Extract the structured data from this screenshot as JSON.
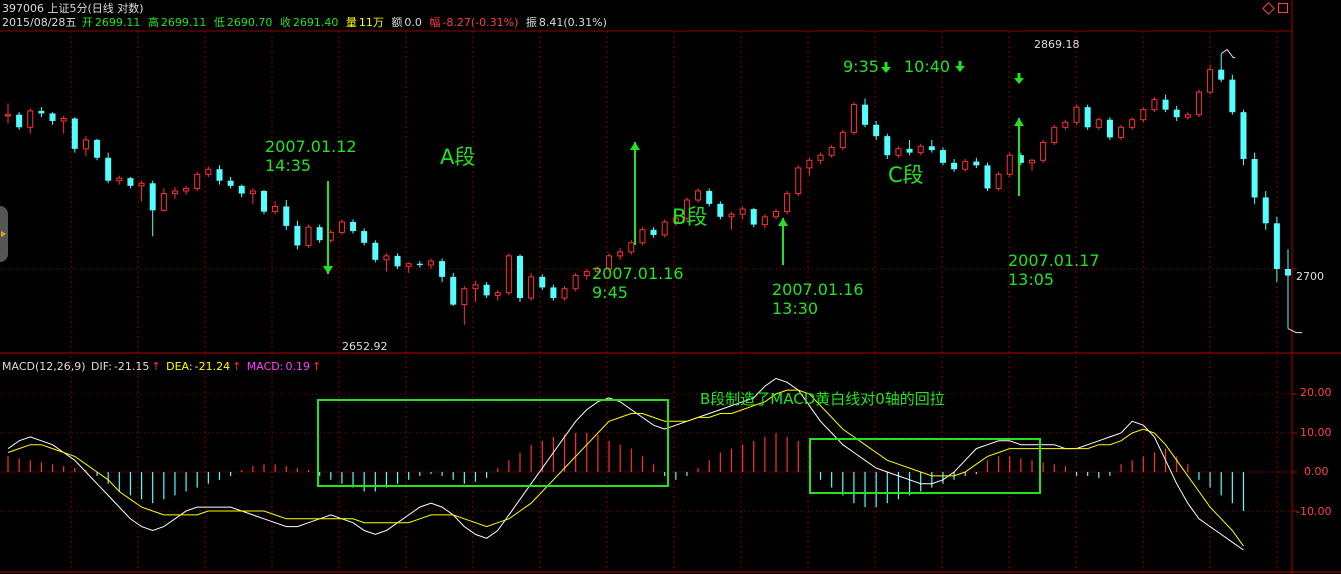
{
  "header": {
    "code_title": "397006 上证5分(日线 对数)",
    "date": "2015/08/28五",
    "open_label": "开",
    "open": "2699.11",
    "high_label": "高",
    "high": "2699.11",
    "low_label": "低",
    "low": "2690.70",
    "close_label": "收",
    "close": "2691.40",
    "vol_label": "量",
    "vol": "11万",
    "amount_label": "额",
    "amount": "0.0",
    "change_label": "幅",
    "change": "-8.27(-0.31%)",
    "amp_label": "振",
    "amp": "8.41(0.31%)"
  },
  "price_axis": {
    "label_2700": "2700"
  },
  "price_extremes": {
    "high_label": "2869.18",
    "low_label": "2652.92"
  },
  "annotations": {
    "a1": {
      "date": "2007.01.12",
      "time": "14:35"
    },
    "a2": {
      "date": "2007.01.16",
      "time": "9:45"
    },
    "a3": {
      "date": "2007.01.16",
      "time": "13:30"
    },
    "a4": {
      "date": "2007.01.17",
      "time": "13:05"
    },
    "t1": "9:35",
    "t2": "10:40",
    "seg_a": "A段",
    "seg_b": "B段",
    "seg_c": "C段",
    "macd_note": "B段制造了MACD黄白线对0轴的回拉"
  },
  "macd_header": {
    "name": "MACD(12,26,9)",
    "dif_label": "DIF:",
    "dif": "-21.15",
    "dea_label": "DEA:",
    "dea": "-21.24",
    "macd_label": "MACD:",
    "macd": "0.19",
    "arrow": "↑"
  },
  "macd_axis": [
    "20.00",
    "10.00",
    "0.00",
    "-10.00"
  ],
  "colors": {
    "up": "#ff3030",
    "down": "#54ffff",
    "dif": "#ffffff",
    "dea": "#ffff00",
    "macd_label": "#ff40ff",
    "annotation": "#22e322",
    "grid": "#8b0000"
  },
  "chart_data": [
    {
      "type": "candlestick",
      "ylabel": "",
      "ylim": [
        2645,
        2880
      ],
      "x_count": 112,
      "y_ticks": [
        2700
      ],
      "ohlc": [
        [
          2819,
          2829,
          2813,
          2820
        ],
        [
          2820,
          2822,
          2808,
          2810
        ],
        [
          2810,
          2825,
          2805,
          2823
        ],
        [
          2823,
          2826,
          2818,
          2821
        ],
        [
          2821,
          2822,
          2812,
          2815
        ],
        [
          2815,
          2819,
          2805,
          2817
        ],
        [
          2817,
          2818,
          2790,
          2793
        ],
        [
          2793,
          2803,
          2787,
          2800
        ],
        [
          2800,
          2801,
          2784,
          2786
        ],
        [
          2786,
          2790,
          2766,
          2768
        ],
        [
          2768,
          2772,
          2765,
          2770
        ],
        [
          2770,
          2771,
          2762,
          2764
        ],
        [
          2764,
          2768,
          2752,
          2766
        ],
        [
          2766,
          2768,
          2725,
          2745
        ],
        [
          2745,
          2762,
          2744,
          2758
        ],
        [
          2758,
          2763,
          2754,
          2760
        ],
        [
          2760,
          2764,
          2757,
          2762
        ],
        [
          2762,
          2775,
          2760,
          2773
        ],
        [
          2773,
          2779,
          2771,
          2777
        ],
        [
          2777,
          2780,
          2765,
          2768
        ],
        [
          2768,
          2771,
          2762,
          2764
        ],
        [
          2764,
          2765,
          2755,
          2758
        ],
        [
          2758,
          2762,
          2750,
          2760
        ],
        [
          2760,
          2761,
          2742,
          2744
        ],
        [
          2744,
          2752,
          2742,
          2748
        ],
        [
          2748,
          2753,
          2730,
          2733
        ],
        [
          2733,
          2737,
          2715,
          2718
        ],
        [
          2718,
          2734,
          2716,
          2732
        ],
        [
          2732,
          2734,
          2720,
          2722
        ],
        [
          2722,
          2730,
          2720,
          2728
        ],
        [
          2728,
          2738,
          2726,
          2736
        ],
        [
          2736,
          2738,
          2727,
          2729
        ],
        [
          2729,
          2731,
          2718,
          2720
        ],
        [
          2720,
          2722,
          2705,
          2707
        ],
        [
          2707,
          2712,
          2698,
          2710
        ],
        [
          2710,
          2712,
          2700,
          2702
        ],
        [
          2702,
          2705,
          2697,
          2704
        ],
        [
          2704,
          2706,
          2701,
          2703
        ],
        [
          2703,
          2708,
          2700,
          2706
        ],
        [
          2706,
          2708,
          2690,
          2694
        ],
        [
          2694,
          2697,
          2672,
          2673
        ],
        [
          2673,
          2687,
          2658,
          2685
        ],
        [
          2685,
          2691,
          2675,
          2688
        ],
        [
          2688,
          2690,
          2678,
          2680
        ],
        [
          2680,
          2684,
          2676,
          2682
        ],
        [
          2682,
          2712,
          2680,
          2710
        ],
        [
          2710,
          2711,
          2675,
          2678
        ],
        [
          2678,
          2697,
          2676,
          2694
        ],
        [
          2694,
          2696,
          2684,
          2686
        ],
        [
          2686,
          2688,
          2676,
          2678
        ],
        [
          2678,
          2687,
          2676,
          2685
        ],
        [
          2685,
          2697,
          2683,
          2695
        ],
        [
          2695,
          2700,
          2692,
          2698
        ],
        [
          2698,
          2702,
          2695,
          2700
        ],
        [
          2700,
          2712,
          2698,
          2710
        ],
        [
          2710,
          2716,
          2707,
          2713
        ],
        [
          2713,
          2722,
          2711,
          2720
        ],
        [
          2720,
          2732,
          2718,
          2730
        ],
        [
          2730,
          2732,
          2724,
          2726
        ],
        [
          2726,
          2738,
          2724,
          2736
        ],
        [
          2736,
          2741,
          2733,
          2739
        ],
        [
          2739,
          2755,
          2737,
          2753
        ],
        [
          2753,
          2762,
          2751,
          2760
        ],
        [
          2760,
          2762,
          2748,
          2750
        ],
        [
          2750,
          2752,
          2738,
          2740
        ],
        [
          2740,
          2744,
          2730,
          2742
        ],
        [
          2742,
          2748,
          2738,
          2746
        ],
        [
          2746,
          2747,
          2732,
          2734
        ],
        [
          2734,
          2742,
          2731,
          2740
        ],
        [
          2740,
          2746,
          2738,
          2744
        ],
        [
          2744,
          2760,
          2742,
          2758
        ],
        [
          2758,
          2780,
          2756,
          2778
        ],
        [
          2778,
          2786,
          2772,
          2784
        ],
        [
          2784,
          2790,
          2781,
          2788
        ],
        [
          2788,
          2796,
          2786,
          2794
        ],
        [
          2794,
          2808,
          2792,
          2806
        ],
        [
          2806,
          2830,
          2804,
          2828
        ],
        [
          2828,
          2833,
          2810,
          2812
        ],
        [
          2812,
          2815,
          2800,
          2803
        ],
        [
          2803,
          2805,
          2785,
          2788
        ],
        [
          2788,
          2795,
          2786,
          2793
        ],
        [
          2793,
          2800,
          2788,
          2790
        ],
        [
          2790,
          2797,
          2788,
          2795
        ],
        [
          2795,
          2800,
          2790,
          2792
        ],
        [
          2792,
          2794,
          2780,
          2782
        ],
        [
          2782,
          2785,
          2775,
          2777
        ],
        [
          2777,
          2785,
          2775,
          2783
        ],
        [
          2783,
          2786,
          2778,
          2780
        ],
        [
          2780,
          2782,
          2760,
          2762
        ],
        [
          2762,
          2775,
          2760,
          2773
        ],
        [
          2773,
          2790,
          2771,
          2788
        ],
        [
          2788,
          2790,
          2780,
          2782
        ],
        [
          2782,
          2785,
          2776,
          2784
        ],
        [
          2784,
          2800,
          2782,
          2798
        ],
        [
          2798,
          2812,
          2796,
          2810
        ],
        [
          2810,
          2816,
          2808,
          2814
        ],
        [
          2814,
          2828,
          2812,
          2826
        ],
        [
          2826,
          2828,
          2808,
          2810
        ],
        [
          2810,
          2818,
          2808,
          2816
        ],
        [
          2816,
          2818,
          2800,
          2802
        ],
        [
          2802,
          2812,
          2800,
          2810
        ],
        [
          2810,
          2818,
          2808,
          2816
        ],
        [
          2816,
          2826,
          2814,
          2824
        ],
        [
          2824,
          2834,
          2822,
          2832
        ],
        [
          2832,
          2836,
          2822,
          2824
        ],
        [
          2824,
          2827,
          2815,
          2818
        ],
        [
          2818,
          2822,
          2816,
          2820
        ],
        [
          2820,
          2840,
          2818,
          2838
        ],
        [
          2838,
          2860,
          2836,
          2856
        ],
        [
          2856,
          2869,
          2846,
          2848
        ],
        [
          2848,
          2852,
          2820,
          2822
        ],
        [
          2822,
          2824,
          2780,
          2785
        ],
        [
          2785,
          2790,
          2750,
          2755
        ],
        [
          2755,
          2760,
          2730,
          2735
        ],
        [
          2735,
          2740,
          2690,
          2700
        ],
        [
          2700,
          2715,
          2655,
          2695
        ]
      ]
    },
    {
      "type": "bar+line",
      "ylabel": "",
      "ylim": [
        -26,
        26
      ],
      "y_ticks": [
        20,
        10,
        0,
        -10
      ],
      "x_count": 112,
      "macd_hist": [
        4,
        3.5,
        3,
        2.5,
        2,
        1.5,
        1,
        0.5,
        -1,
        -3,
        -5,
        -6,
        -7,
        -8,
        -7,
        -6,
        -5,
        -4,
        -3,
        -2,
        -1,
        0.5,
        1.5,
        2,
        2,
        1.5,
        1,
        0.5,
        -1,
        -2,
        -3,
        -4,
        -5,
        -5,
        -4,
        -3,
        -2,
        -1,
        -0.5,
        -1,
        -2,
        -3,
        -2.5,
        -1.5,
        1,
        3,
        5,
        7,
        8,
        9,
        9.5,
        10,
        10,
        9.5,
        8,
        7,
        6,
        4,
        2,
        -1,
        -2,
        -1,
        1,
        3,
        5,
        6,
        7,
        8,
        9,
        10,
        9,
        8,
        7,
        -2,
        -4,
        -6,
        -8,
        -9,
        -9,
        -8,
        -7,
        -6,
        -5,
        -4,
        -3,
        -2,
        -1,
        -0.5,
        3,
        4,
        4,
        3.5,
        3,
        2.5,
        2,
        1.5,
        -1,
        -1,
        -1.5,
        -1,
        2,
        3,
        4,
        5,
        6,
        4,
        2,
        -2,
        -4,
        -6,
        -8,
        -10
      ],
      "series": [
        {
          "name": "DIF",
          "values": [
            6,
            8,
            9,
            8,
            7,
            5,
            3,
            0,
            -3,
            -6,
            -9,
            -12,
            -14,
            -15,
            -14,
            -12,
            -10,
            -9,
            -9,
            -9,
            -9,
            -10,
            -11,
            -12,
            -13,
            -14,
            -14,
            -13,
            -12,
            -11,
            -12,
            -13,
            -15,
            -16,
            -15,
            -13,
            -11,
            -9,
            -8,
            -9,
            -11,
            -14,
            -16,
            -17,
            -15,
            -11,
            -7,
            -3,
            1,
            5,
            9,
            13,
            16,
            18,
            19,
            18,
            16,
            14,
            12,
            11,
            12,
            13,
            14,
            15,
            16,
            17,
            18,
            19,
            22,
            24,
            23,
            21,
            17,
            13,
            10,
            7,
            5,
            3,
            1,
            0,
            -1,
            -2,
            -3,
            -3,
            -2,
            0,
            3,
            6,
            7,
            8,
            8,
            7,
            7,
            7,
            7,
            6,
            6,
            7,
            8,
            9,
            10,
            13,
            12,
            9,
            3,
            -3,
            -8,
            -12,
            -14,
            -16,
            -18,
            -20
          ]
        },
        {
          "name": "DEA",
          "values": [
            5,
            6,
            7,
            7,
            6,
            5,
            4,
            2,
            0,
            -2,
            -5,
            -7,
            -9,
            -10,
            -11,
            -11,
            -11,
            -11,
            -10,
            -10,
            -10,
            -10,
            -10,
            -10,
            -11,
            -12,
            -12,
            -12,
            -12,
            -12,
            -12,
            -12,
            -13,
            -13,
            -13,
            -13,
            -13,
            -12,
            -11,
            -11,
            -11,
            -12,
            -13,
            -14,
            -13,
            -12,
            -10,
            -8,
            -5,
            -2,
            1,
            4,
            7,
            10,
            13,
            14,
            15,
            15,
            14,
            13,
            13,
            13,
            14,
            14,
            15,
            15,
            16,
            17,
            18,
            20,
            21,
            21,
            20,
            17,
            14,
            11,
            9,
            7,
            5,
            3,
            2,
            1,
            0,
            -1,
            -1,
            -1,
            0,
            2,
            4,
            5,
            6,
            6,
            6,
            6,
            6,
            6,
            6,
            6,
            7,
            7,
            8,
            10,
            11,
            10,
            7,
            3,
            -1,
            -5,
            -9,
            -12,
            -15,
            -19
          ]
        }
      ]
    }
  ]
}
